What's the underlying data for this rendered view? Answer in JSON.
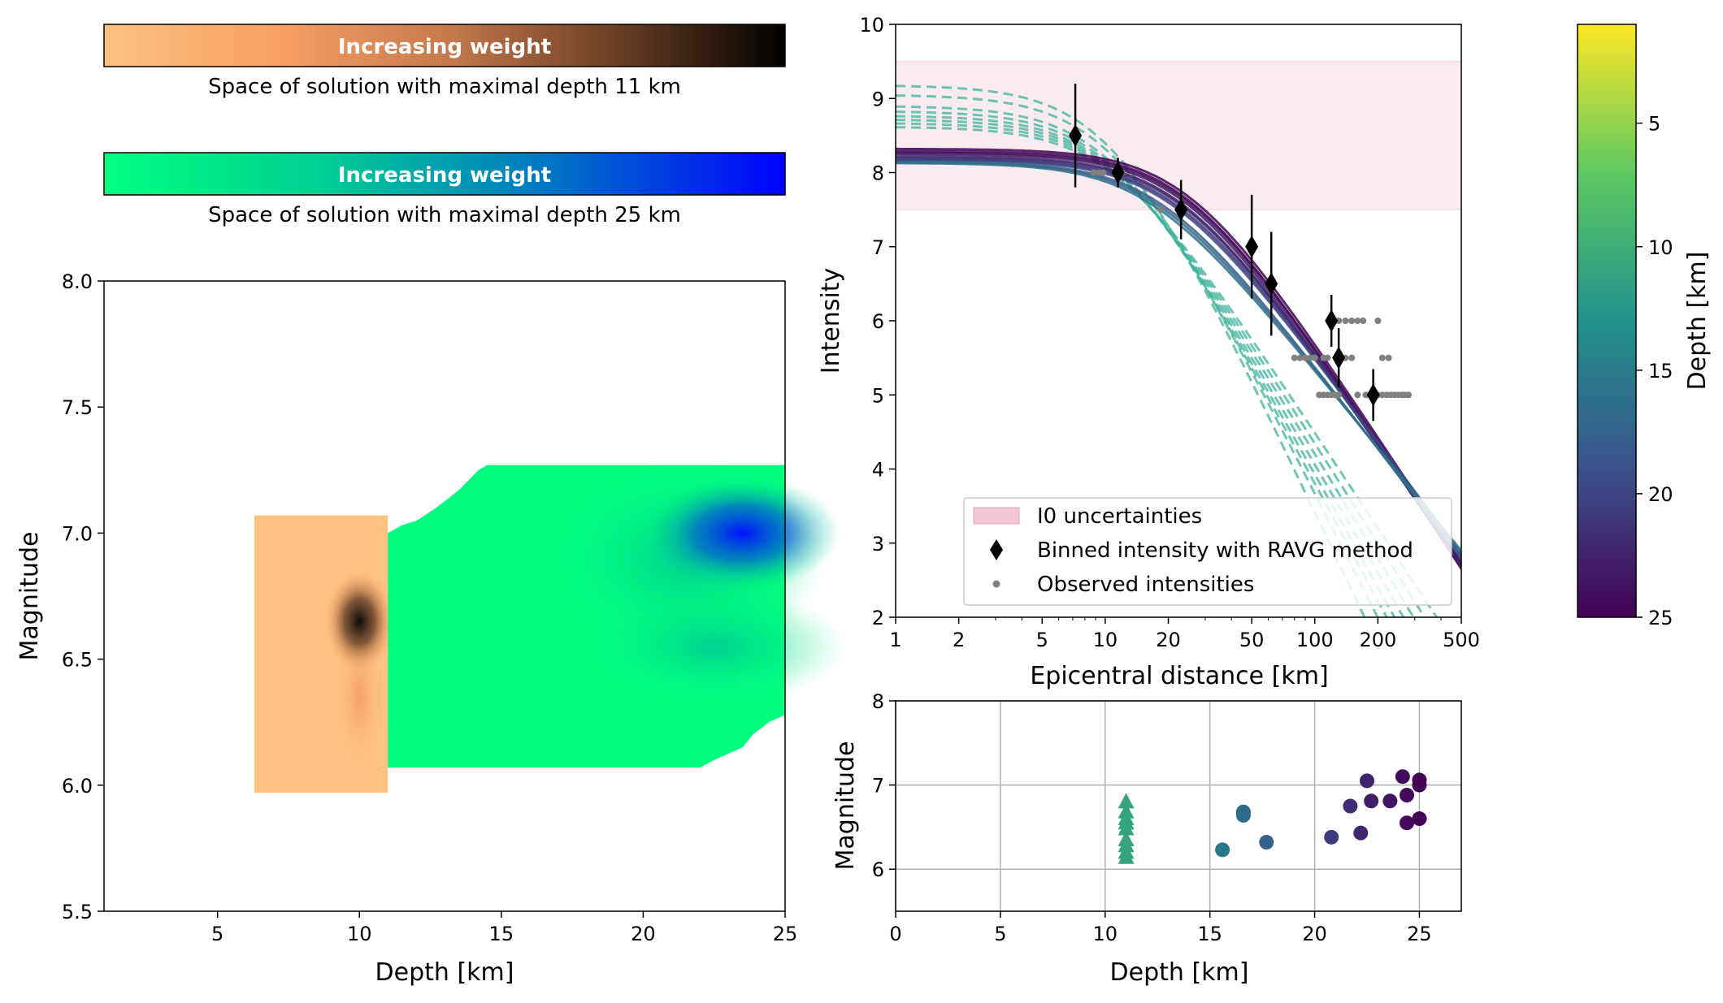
{
  "colorbars": {
    "orange": {
      "label": "Increasing weight",
      "caption": "Space of solution with maximal depth 11 km",
      "stops": [
        "#fdc180",
        "#f9a064",
        "#c77a4e",
        "#6b3f24",
        "#000000"
      ]
    },
    "green": {
      "label": "Increasing weight",
      "caption": "Space of solution with maximal depth 25 km",
      "stops": [
        "#00ff7f",
        "#00cc94",
        "#0073c6",
        "#0000ff"
      ]
    }
  },
  "heatmap": {
    "xlabel": "Depth [km]",
    "ylabel": "Magnitude",
    "xlim": [
      1,
      25
    ],
    "ylim": [
      5.5,
      8.0
    ],
    "xticks": [
      "5",
      "10",
      "15",
      "20",
      "25"
    ],
    "yticks": [
      "5.5",
      "6.0",
      "6.5",
      "7.0",
      "7.5",
      "8.0"
    ],
    "orange_region": {
      "depth": [
        6.3,
        11.0
      ],
      "magnitude": [
        5.97,
        7.07
      ],
      "peak": {
        "depth": 10.0,
        "magnitude": 6.65
      }
    },
    "green_region": {
      "depth": [
        11.0,
        25.0
      ],
      "magnitude": [
        6.07,
        7.27
      ],
      "peak": {
        "depth": 23.5,
        "magnitude": 7.0
      }
    }
  },
  "colorbar_depth": {
    "label": "Depth [km]",
    "ticks": [
      "5",
      "10",
      "15",
      "20",
      "25"
    ],
    "range": [
      1,
      25
    ],
    "stops": [
      "#fde725",
      "#5ec962",
      "#21918c",
      "#3b528b",
      "#440154"
    ]
  },
  "chart_data": [
    {
      "type": "line",
      "xlabel": "Epicentral distance [km]",
      "ylabel": "Intensity",
      "xscale": "log",
      "xlim": [
        1,
        500
      ],
      "ylim": [
        2,
        10
      ],
      "xticks": [
        "1",
        "2",
        "5",
        "10",
        "20",
        "50",
        "100",
        "200",
        "500"
      ],
      "yticks": [
        "2",
        "3",
        "4",
        "5",
        "6",
        "7",
        "8",
        "9",
        "10"
      ],
      "legend": {
        "placement": "lower right",
        "entries": [
          "I0 uncertainties",
          "Binned intensity with RAVG method",
          "Observed intensities"
        ]
      },
      "i0_band": [
        7.5,
        9.5
      ],
      "binned": [
        {
          "x": 7.2,
          "y": 8.5,
          "err": 0.7
        },
        {
          "x": 11.5,
          "y": 8.0,
          "err": 0.2
        },
        {
          "x": 23,
          "y": 7.5,
          "err": 0.4
        },
        {
          "x": 50,
          "y": 7.0,
          "err": 0.7
        },
        {
          "x": 62,
          "y": 6.5,
          "err": 0.7
        },
        {
          "x": 120,
          "y": 6.0,
          "err": 0.35
        },
        {
          "x": 130,
          "y": 5.5,
          "err": 0.4
        },
        {
          "x": 190,
          "y": 5.0,
          "err": 0.35
        }
      ],
      "observed": [
        {
          "x": 8.8,
          "y": 8
        },
        {
          "x": 9.3,
          "y": 8
        },
        {
          "x": 9.8,
          "y": 8
        },
        {
          "x": 12,
          "y": 8
        },
        {
          "x": 18.5,
          "y": 7.5
        },
        {
          "x": 80,
          "y": 5.5
        },
        {
          "x": 85,
          "y": 5.5
        },
        {
          "x": 90,
          "y": 5.5
        },
        {
          "x": 95,
          "y": 5.5
        },
        {
          "x": 100,
          "y": 5.5
        },
        {
          "x": 110,
          "y": 5.5
        },
        {
          "x": 115,
          "y": 5.5
        },
        {
          "x": 140,
          "y": 5.5
        },
        {
          "x": 150,
          "y": 5.5
        },
        {
          "x": 130,
          "y": 6
        },
        {
          "x": 140,
          "y": 6
        },
        {
          "x": 150,
          "y": 6
        },
        {
          "x": 160,
          "y": 6
        },
        {
          "x": 170,
          "y": 6
        },
        {
          "x": 200,
          "y": 6
        },
        {
          "x": 210,
          "y": 5.5
        },
        {
          "x": 225,
          "y": 5.5
        },
        {
          "x": 105,
          "y": 5
        },
        {
          "x": 110,
          "y": 5
        },
        {
          "x": 115,
          "y": 5
        },
        {
          "x": 120,
          "y": 5
        },
        {
          "x": 125,
          "y": 5
        },
        {
          "x": 130,
          "y": 5
        },
        {
          "x": 160,
          "y": 5
        },
        {
          "x": 175,
          "y": 5
        },
        {
          "x": 200,
          "y": 5
        },
        {
          "x": 210,
          "y": 5
        },
        {
          "x": 220,
          "y": 5
        },
        {
          "x": 230,
          "y": 5
        },
        {
          "x": 240,
          "y": 5
        },
        {
          "x": 250,
          "y": 5
        },
        {
          "x": 260,
          "y": 5
        },
        {
          "x": 270,
          "y": 5
        },
        {
          "x": 280,
          "y": 5
        }
      ],
      "curves_solid": [
        {
          "i0": 8.32,
          "d": 25,
          "b": 4.3
        },
        {
          "i0": 8.29,
          "d": 24.5,
          "b": 4.3
        },
        {
          "i0": 8.27,
          "d": 24,
          "b": 4.2
        },
        {
          "i0": 8.25,
          "d": 23.5,
          "b": 4.2
        },
        {
          "i0": 8.22,
          "d": 22.5,
          "b": 4.1
        },
        {
          "i0": 8.2,
          "d": 22,
          "b": 4.0
        },
        {
          "i0": 8.18,
          "d": 21,
          "b": 3.9
        },
        {
          "i0": 8.17,
          "d": 20,
          "b": 3.8
        },
        {
          "i0": 8.15,
          "d": 18,
          "b": 3.7
        },
        {
          "i0": 8.14,
          "d": 17,
          "b": 3.6
        },
        {
          "i0": 8.13,
          "d": 16,
          "b": 3.5
        }
      ],
      "curves_dashed": [
        {
          "i0": 9.18,
          "d": 11,
          "b": 6.0
        },
        {
          "i0": 9.05,
          "d": 11,
          "b": 5.6
        },
        {
          "i0": 8.9,
          "d": 11,
          "b": 5.3
        },
        {
          "i0": 8.83,
          "d": 11,
          "b": 5.1
        },
        {
          "i0": 8.77,
          "d": 11,
          "b": 4.9
        },
        {
          "i0": 8.72,
          "d": 11,
          "b": 4.7
        },
        {
          "i0": 8.67,
          "d": 11,
          "b": 4.5
        },
        {
          "i0": 8.62,
          "d": 11,
          "b": 4.3
        }
      ]
    },
    {
      "type": "scatter",
      "xlabel": "Depth [km]",
      "ylabel": "Magnitude",
      "xlim": [
        0,
        27
      ],
      "ylim": [
        5.5,
        8
      ],
      "xticks": [
        "0",
        "5",
        "10",
        "15",
        "20",
        "25"
      ],
      "yticks": [
        "6",
        "7",
        "8"
      ],
      "grid": true,
      "triangles": [
        {
          "x": 11,
          "y": 6.8
        },
        {
          "x": 11,
          "y": 6.68
        },
        {
          "x": 11,
          "y": 6.6
        },
        {
          "x": 11,
          "y": 6.55
        },
        {
          "x": 11,
          "y": 6.48
        },
        {
          "x": 11,
          "y": 6.35
        },
        {
          "x": 11,
          "y": 6.28
        },
        {
          "x": 11,
          "y": 6.2
        },
        {
          "x": 11,
          "y": 6.14
        }
      ],
      "circles": [
        {
          "x": 15.6,
          "y": 6.23
        },
        {
          "x": 16.6,
          "y": 6.68
        },
        {
          "x": 16.6,
          "y": 6.64
        },
        {
          "x": 17.7,
          "y": 6.32
        },
        {
          "x": 20.8,
          "y": 6.38
        },
        {
          "x": 21.7,
          "y": 6.75
        },
        {
          "x": 22.2,
          "y": 6.43
        },
        {
          "x": 22.5,
          "y": 7.05
        },
        {
          "x": 22.7,
          "y": 6.81
        },
        {
          "x": 23.6,
          "y": 6.81
        },
        {
          "x": 24.2,
          "y": 7.1
        },
        {
          "x": 24.4,
          "y": 6.88
        },
        {
          "x": 24.4,
          "y": 6.55
        },
        {
          "x": 25.0,
          "y": 7.06
        },
        {
          "x": 25.0,
          "y": 7.0
        },
        {
          "x": 25.0,
          "y": 6.6
        }
      ]
    }
  ]
}
